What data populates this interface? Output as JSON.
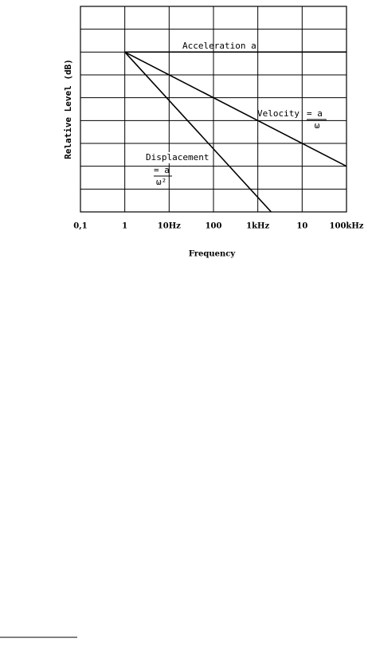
{
  "chart_data": {
    "type": "line",
    "x_label": "Frequency",
    "y_label": "Relative Level (dB)",
    "xscale": "log",
    "xlim": [
      0.1,
      100000
    ],
    "xticks": [
      {
        "value": 0.1,
        "label": "0,1"
      },
      1,
      {
        "value": 10,
        "label": "10Hz"
      },
      100,
      {
        "value": 1000,
        "label": "1kHz"
      },
      {
        "value": 10000,
        "label": "10"
      },
      {
        "value": 100000,
        "label": "100kHz"
      }
    ],
    "ylim": [
      0,
      9
    ],
    "yticks": [
      0,
      1,
      2,
      3,
      4,
      5,
      6,
      7,
      8,
      9
    ],
    "ytick_labels": false,
    "grid": true,
    "series": [
      {
        "name": "Acceleration a",
        "color": "#000000",
        "x": [
          1,
          100000
        ],
        "values": [
          7,
          7
        ]
      },
      {
        "name": "Velocity",
        "color": "#000000",
        "x": [
          1,
          100000
        ],
        "values": [
          7,
          2
        ]
      },
      {
        "name": "Displacement",
        "color": "#000000",
        "x": [
          1,
          2000
        ],
        "values": [
          7,
          0
        ]
      }
    ],
    "annotations": {
      "velocity_formula": "= a",
      "velocity_denominator": "ω",
      "displacement_formula": "= a",
      "displacement_denominator": "ω²"
    }
  }
}
